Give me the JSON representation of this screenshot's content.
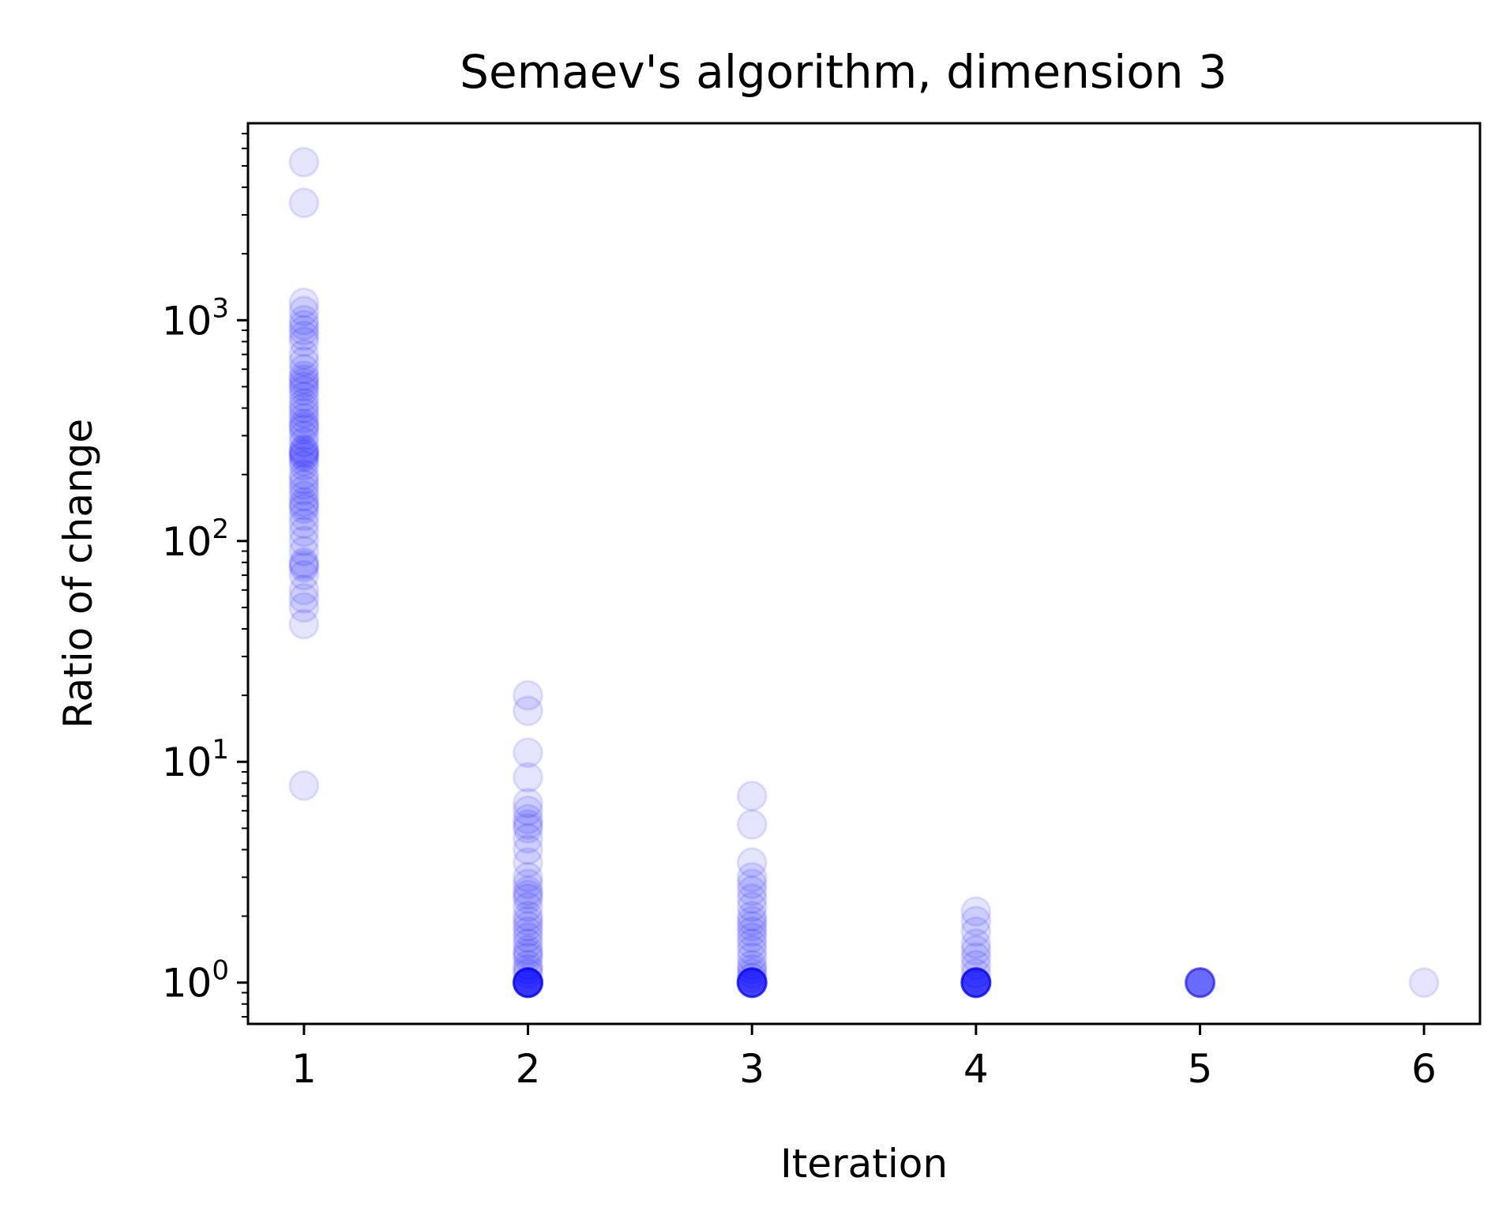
{
  "chart_data": {
    "type": "scatter",
    "title": "Semaev's algorithm, dimension 3",
    "xlabel": "Iteration",
    "ylabel": "Ratio of change",
    "x_ticks": [
      "1",
      "2",
      "3",
      "4",
      "5",
      "6"
    ],
    "y_ticks": [
      {
        "base": "10",
        "exp": "0",
        "value": 1
      },
      {
        "base": "10",
        "exp": "1",
        "value": 10
      },
      {
        "base": "10",
        "exp": "2",
        "value": 100
      },
      {
        "base": "10",
        "exp": "3",
        "value": 1000
      }
    ],
    "xlim": [
      0.75,
      6.25
    ],
    "ylim": [
      0.65,
      7800
    ],
    "yscale": "log",
    "grid": false,
    "marker_color": "#0000ff",
    "marker_alpha": 0.1,
    "series": [
      {
        "x": [
          1,
          1,
          1,
          1,
          1,
          1,
          1,
          1,
          1,
          1,
          1,
          1,
          1,
          1,
          1,
          1,
          1,
          1,
          1,
          1,
          1,
          1,
          1,
          1,
          1,
          1,
          1,
          1,
          1,
          1,
          1,
          1,
          1,
          1,
          1,
          1,
          1,
          1,
          1,
          1,
          1,
          1,
          1,
          1,
          1,
          1,
          1,
          1,
          1,
          1,
          1,
          1,
          1,
          1,
          1,
          1,
          2,
          2,
          2,
          2,
          2,
          2,
          2,
          2,
          2,
          2,
          2,
          2,
          2,
          2,
          2,
          2,
          2,
          2,
          2,
          2,
          2,
          2,
          2,
          2,
          2,
          2,
          2,
          2,
          2,
          2,
          2,
          2,
          2,
          2,
          2,
          2,
          2,
          2,
          2,
          2,
          2,
          2,
          2,
          2,
          3,
          3,
          3,
          3,
          3,
          3,
          3,
          3,
          3,
          3,
          3,
          3,
          3,
          3,
          3,
          3,
          3,
          3,
          3,
          3,
          3,
          3,
          3,
          3,
          3,
          3,
          3,
          3,
          3,
          3,
          3,
          3,
          4,
          4,
          4,
          4,
          4,
          4,
          4,
          4,
          4,
          4,
          4,
          4,
          4,
          4,
          4,
          4,
          4,
          4,
          4,
          4,
          4,
          5,
          5,
          5,
          5,
          5,
          5,
          5,
          5,
          6
        ],
        "y": [
          5200,
          3400,
          1200,
          1100,
          1000,
          950,
          900,
          850,
          800,
          700,
          650,
          600,
          560,
          540,
          520,
          500,
          480,
          450,
          420,
          400,
          380,
          360,
          340,
          330,
          320,
          300,
          280,
          260,
          255,
          250,
          245,
          240,
          230,
          220,
          200,
          190,
          180,
          170,
          160,
          150,
          145,
          140,
          130,
          120,
          110,
          100,
          90,
          80,
          78,
          76,
          70,
          60,
          55,
          50,
          42,
          7.8,
          20,
          17,
          11,
          8.5,
          6.5,
          6,
          5.5,
          5.2,
          5,
          4.5,
          4,
          3.5,
          3,
          2.8,
          2.6,
          2.5,
          2.4,
          2.2,
          2,
          1.9,
          1.8,
          1.7,
          1.6,
          1.5,
          1.4,
          1.35,
          1.3,
          1.2,
          1.15,
          1.1,
          1,
          1,
          1,
          1,
          1,
          1,
          1,
          1,
          1,
          1,
          1,
          1,
          1,
          1,
          7,
          5.2,
          3.5,
          3,
          2.8,
          2.6,
          2.4,
          2.2,
          2,
          1.9,
          1.8,
          1.7,
          1.6,
          1.5,
          1.4,
          1.3,
          1.2,
          1.15,
          1.1,
          1.05,
          1,
          1,
          1,
          1,
          1,
          1,
          1,
          1,
          1,
          1,
          1,
          1,
          2.1,
          1.9,
          1.7,
          1.5,
          1.4,
          1.3,
          1.2,
          1.1,
          1,
          1,
          1,
          1,
          1,
          1,
          1,
          1,
          1,
          1,
          1,
          1,
          1,
          1,
          1,
          1,
          1,
          1,
          1,
          1,
          1,
          1
        ]
      }
    ]
  }
}
